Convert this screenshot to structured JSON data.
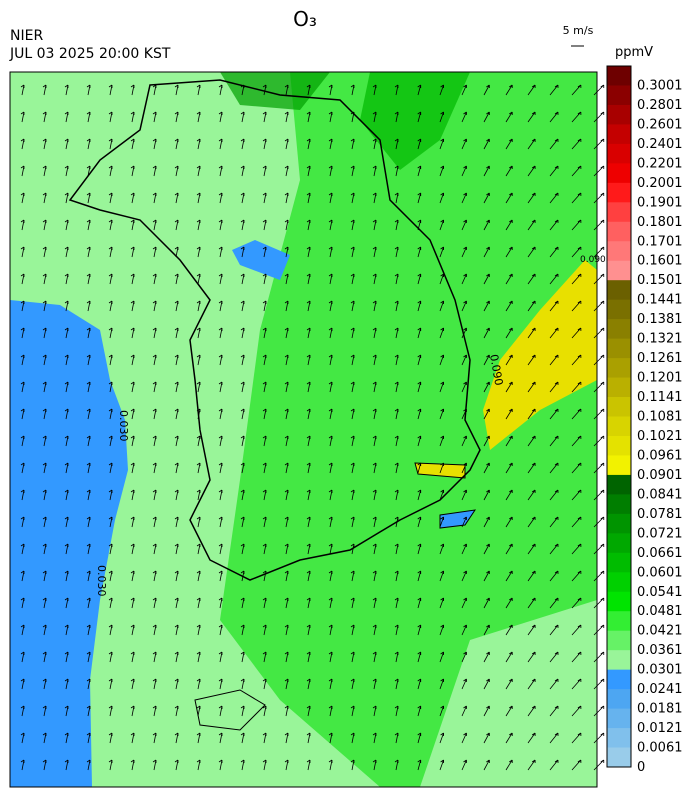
{
  "header": {
    "title": "O₃",
    "agency": "NIER",
    "datetime": "JUL 03 2025 20:00 KST",
    "wind_reference": "5 m/s",
    "unit": "ppmV"
  },
  "colorbar": {
    "labels": [
      0.3001,
      0.2801,
      0.2601,
      0.2401,
      0.2201,
      0.2001,
      0.1901,
      0.1801,
      0.1701,
      0.1601,
      0.1501,
      0.1441,
      0.1381,
      0.1321,
      0.1261,
      0.1201,
      0.1141,
      0.1081,
      0.1021,
      0.0961,
      0.0901,
      0.0841,
      0.0781,
      0.0721,
      0.0661,
      0.0601,
      0.0541,
      0.0481,
      0.0421,
      0.0361,
      0.0301,
      0.0241,
      0.0181,
      0.0121,
      0.0061,
      0
    ],
    "colors": [
      "#6e0000",
      "#8b0000",
      "#a80000",
      "#c40000",
      "#d90000",
      "#ee0000",
      "#ff1a1a",
      "#ff4040",
      "#ff6060",
      "#ff7878",
      "#ff9090",
      "#6b6000",
      "#7a7000",
      "#8a8000",
      "#9a9000",
      "#aaa000",
      "#bab000",
      "#cac400",
      "#d8d400",
      "#e4e200",
      "#f2f200",
      "#006400",
      "#007e00",
      "#009400",
      "#00a800",
      "#00bc00",
      "#00d000",
      "#00e400",
      "#33ee33",
      "#66f266",
      "#99f599",
      "#3399ff",
      "#4da6f2",
      "#66b3ee",
      "#80c0ec",
      "#99ccea"
    ]
  },
  "map": {
    "contour_labels": [
      "0.090",
      "0.090",
      "0.030",
      "0.030"
    ]
  }
}
